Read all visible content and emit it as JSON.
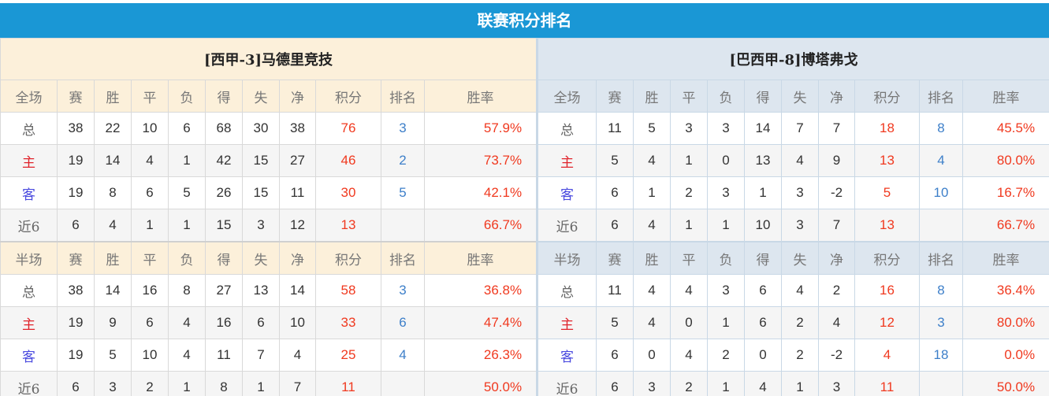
{
  "title": "联赛积分排名",
  "colors": {
    "accent": "#1a97d5",
    "points": "#f0391f",
    "rank": "#3d7fc9",
    "home": "#e0242c",
    "away": "#4a4adf"
  },
  "columns": [
    "赛",
    "胜",
    "平",
    "负",
    "得",
    "失",
    "净",
    "积分",
    "排名",
    "胜率"
  ],
  "teams": [
    {
      "name": "[西甲-3]马德里竞技",
      "sections": [
        {
          "label": "全场",
          "rows": [
            {
              "label": "总",
              "values": [
                "38",
                "22",
                "10",
                "6",
                "68",
                "30",
                "38",
                "76",
                "3",
                "57.9%"
              ]
            },
            {
              "label": "主",
              "values": [
                "19",
                "14",
                "4",
                "1",
                "42",
                "15",
                "27",
                "46",
                "2",
                "73.7%"
              ]
            },
            {
              "label": "客",
              "values": [
                "19",
                "8",
                "6",
                "5",
                "26",
                "15",
                "11",
                "30",
                "5",
                "42.1%"
              ]
            },
            {
              "label": "近6",
              "values": [
                "6",
                "4",
                "1",
                "1",
                "15",
                "3",
                "12",
                "13",
                "",
                "66.7%"
              ]
            }
          ]
        },
        {
          "label": "半场",
          "rows": [
            {
              "label": "总",
              "values": [
                "38",
                "14",
                "16",
                "8",
                "27",
                "13",
                "14",
                "58",
                "3",
                "36.8%"
              ]
            },
            {
              "label": "主",
              "values": [
                "19",
                "9",
                "6",
                "4",
                "16",
                "6",
                "10",
                "33",
                "6",
                "47.4%"
              ]
            },
            {
              "label": "客",
              "values": [
                "19",
                "5",
                "10",
                "4",
                "11",
                "7",
                "4",
                "25",
                "4",
                "26.3%"
              ]
            },
            {
              "label": "近6",
              "values": [
                "6",
                "3",
                "2",
                "1",
                "8",
                "1",
                "7",
                "11",
                "",
                "50.0%"
              ]
            }
          ]
        }
      ]
    },
    {
      "name": "[巴西甲-8]博塔弗戈",
      "sections": [
        {
          "label": "全场",
          "rows": [
            {
              "label": "总",
              "values": [
                "11",
                "5",
                "3",
                "3",
                "14",
                "7",
                "7",
                "18",
                "8",
                "45.5%"
              ]
            },
            {
              "label": "主",
              "values": [
                "5",
                "4",
                "1",
                "0",
                "13",
                "4",
                "9",
                "13",
                "4",
                "80.0%"
              ]
            },
            {
              "label": "客",
              "values": [
                "6",
                "1",
                "2",
                "3",
                "1",
                "3",
                "-2",
                "5",
                "10",
                "16.7%"
              ]
            },
            {
              "label": "近6",
              "values": [
                "6",
                "4",
                "1",
                "1",
                "10",
                "3",
                "7",
                "13",
                "",
                "66.7%"
              ]
            }
          ]
        },
        {
          "label": "半场",
          "rows": [
            {
              "label": "总",
              "values": [
                "11",
                "4",
                "4",
                "3",
                "6",
                "4",
                "2",
                "16",
                "8",
                "36.4%"
              ]
            },
            {
              "label": "主",
              "values": [
                "5",
                "4",
                "0",
                "1",
                "6",
                "2",
                "4",
                "12",
                "3",
                "80.0%"
              ]
            },
            {
              "label": "客",
              "values": [
                "6",
                "0",
                "4",
                "2",
                "0",
                "2",
                "-2",
                "4",
                "18",
                "0.0%"
              ]
            },
            {
              "label": "近6",
              "values": [
                "6",
                "3",
                "2",
                "1",
                "4",
                "1",
                "3",
                "11",
                "",
                "50.0%"
              ]
            }
          ]
        }
      ]
    }
  ]
}
